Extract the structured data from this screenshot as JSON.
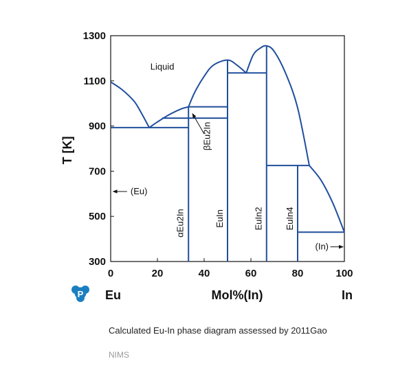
{
  "chart_data": {
    "type": "line",
    "title": "",
    "ylabel": "T [K]",
    "xlabel": "Mol%(In)",
    "left_component": "Eu",
    "right_component": "In",
    "xlim": [
      0,
      100
    ],
    "ylim": [
      300,
      1300
    ],
    "xticks": [
      0,
      20,
      40,
      60,
      80,
      100
    ],
    "yticks": [
      300,
      500,
      700,
      900,
      1100,
      1300
    ],
    "line_color": "#1f4e9c",
    "curves": [
      {
        "name": "liquidus-eu",
        "points": [
          [
            0,
            1095
          ],
          [
            5,
            1060
          ],
          [
            10,
            1010
          ],
          [
            13,
            960
          ],
          [
            16.5,
            893
          ]
        ]
      },
      {
        "name": "liquidus-eu2in",
        "points": [
          [
            16.5,
            893
          ],
          [
            20,
            918
          ],
          [
            25,
            950
          ],
          [
            30,
            975
          ],
          [
            33.3,
            985
          ]
        ]
      },
      {
        "name": "liquidus-euin",
        "points": [
          [
            33.3,
            985
          ],
          [
            36,
            1050
          ],
          [
            40,
            1120
          ],
          [
            44,
            1170
          ],
          [
            50,
            1192
          ],
          [
            54,
            1170
          ],
          [
            58,
            1135
          ]
        ]
      },
      {
        "name": "liquidus-euin2",
        "points": [
          [
            58,
            1135
          ],
          [
            61,
            1215
          ],
          [
            64,
            1245
          ],
          [
            66.7,
            1255
          ],
          [
            70,
            1230
          ],
          [
            75,
            1130
          ],
          [
            80,
            980
          ],
          [
            85,
            725
          ]
        ]
      },
      {
        "name": "liquidus-in",
        "points": [
          [
            85,
            725
          ],
          [
            90,
            660
          ],
          [
            95,
            560
          ],
          [
            100,
            430
          ]
        ]
      }
    ],
    "horizontal_lines": [
      {
        "temperature": 893,
        "x_from": 0,
        "x_to": 33.3
      },
      {
        "temperature": 935,
        "x_from": 22,
        "x_to": 50
      },
      {
        "temperature": 985,
        "x_from": 33.3,
        "x_to": 50
      },
      {
        "temperature": 1135,
        "x_from": 50,
        "x_to": 66.7
      },
      {
        "temperature": 725,
        "x_from": 66.7,
        "x_to": 85
      },
      {
        "temperature": 430,
        "x_from": 80,
        "x_to": 100
      }
    ],
    "vertical_lines": [
      {
        "x": 33.3,
        "t_from": 300,
        "t_to": 985
      },
      {
        "x": 50,
        "t_from": 300,
        "t_to": 1192
      },
      {
        "x": 66.7,
        "t_from": 300,
        "t_to": 1255
      },
      {
        "x": 80,
        "t_from": 300,
        "t_to": 725
      }
    ],
    "labels": [
      {
        "text": "Liquid",
        "x": 17,
        "y": 1150,
        "rotate": false
      },
      {
        "text": "αEu2In",
        "x": 31,
        "y": 470,
        "rotate": true
      },
      {
        "text": "βEu2In",
        "x": 42.5,
        "y": 855,
        "rotate": true
      },
      {
        "text": "EuIn",
        "x": 48,
        "y": 490,
        "rotate": true
      },
      {
        "text": "EuIn2",
        "x": 64.5,
        "y": 490,
        "rotate": true
      },
      {
        "text": "EuIn4",
        "x": 78,
        "y": 490,
        "rotate": true
      }
    ],
    "annotations": [
      {
        "text": "(Eu)",
        "x": 8.5,
        "y": 610,
        "arrow_from": [
          7,
          610
        ],
        "arrow_to": [
          1,
          610
        ]
      },
      {
        "text": "(In)",
        "x": 87.5,
        "y": 365,
        "arrow_from": [
          94,
          365
        ],
        "arrow_to": [
          99.5,
          365
        ]
      },
      {
        "text": "",
        "arrow_from": [
          40,
          865
        ],
        "arrow_to": [
          35,
          955
        ]
      }
    ]
  },
  "caption": "Calculated Eu-In phase diagram assessed by 2011Gao",
  "org": "NIMS",
  "logo_letter": "P"
}
